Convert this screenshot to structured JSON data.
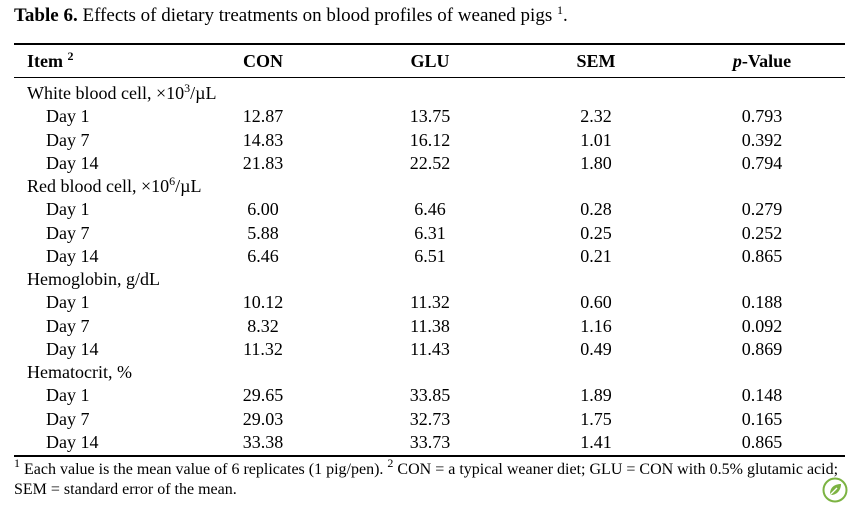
{
  "caption": {
    "label": "Table 6.",
    "text": " Effects of dietary treatments on blood profiles of weaned pigs ",
    "sup": "1",
    "end": "."
  },
  "header": {
    "item": "Item ",
    "item_sup": "2",
    "con": "CON",
    "glu": "GLU",
    "sem": "SEM",
    "p_italic": "p",
    "p_rest": "-Value"
  },
  "groups": [
    {
      "label_pre": "White blood cell, ×10",
      "label_sup": "3",
      "label_post": "/µL",
      "rows": [
        {
          "day": "Day 1",
          "con": "12.87",
          "glu": "13.75",
          "sem": "2.32",
          "p": "0.793"
        },
        {
          "day": "Day 7",
          "con": "14.83",
          "glu": "16.12",
          "sem": "1.01",
          "p": "0.392"
        },
        {
          "day": "Day 14",
          "con": "21.83",
          "glu": "22.52",
          "sem": "1.80",
          "p": "0.794"
        }
      ]
    },
    {
      "label_pre": "Red blood cell, ×10",
      "label_sup": "6",
      "label_post": "/µL",
      "rows": [
        {
          "day": "Day 1",
          "con": "6.00",
          "glu": "6.46",
          "sem": "0.28",
          "p": "0.279"
        },
        {
          "day": "Day 7",
          "con": "5.88",
          "glu": "6.31",
          "sem": "0.25",
          "p": "0.252"
        },
        {
          "day": "Day 14",
          "con": "6.46",
          "glu": "6.51",
          "sem": "0.21",
          "p": "0.865"
        }
      ]
    },
    {
      "label_pre": "Hemoglobin, g/dL",
      "label_sup": "",
      "label_post": "",
      "rows": [
        {
          "day": "Day 1",
          "con": "10.12",
          "glu": "11.32",
          "sem": "0.60",
          "p": "0.188"
        },
        {
          "day": "Day 7",
          "con": "8.32",
          "glu": "11.38",
          "sem": "1.16",
          "p": "0.092"
        },
        {
          "day": "Day 14",
          "con": "11.32",
          "glu": "11.43",
          "sem": "0.49",
          "p": "0.869"
        }
      ]
    },
    {
      "label_pre": "Hematocrit, %",
      "label_sup": "",
      "label_post": "",
      "rows": [
        {
          "day": "Day 1",
          "con": "29.65",
          "glu": "33.85",
          "sem": "1.89",
          "p": "0.148"
        },
        {
          "day": "Day 7",
          "con": "29.03",
          "glu": "32.73",
          "sem": "1.75",
          "p": "0.165"
        },
        {
          "day": "Day 14",
          "con": "33.38",
          "glu": "33.73",
          "sem": "1.41",
          "p": "0.865"
        }
      ]
    }
  ],
  "footnote": {
    "sup1": "1",
    "text1": " Each value is the mean value of 6 replicates (1 pig/pen). ",
    "sup2": "2",
    "text2": " CON = a typical weaner diet; GLU = CON with 0.5% glutamic acid; SEM = standard error of the mean."
  },
  "icons": {
    "logo": "leaf-badge-icon",
    "logo_color": "#7cb342"
  }
}
